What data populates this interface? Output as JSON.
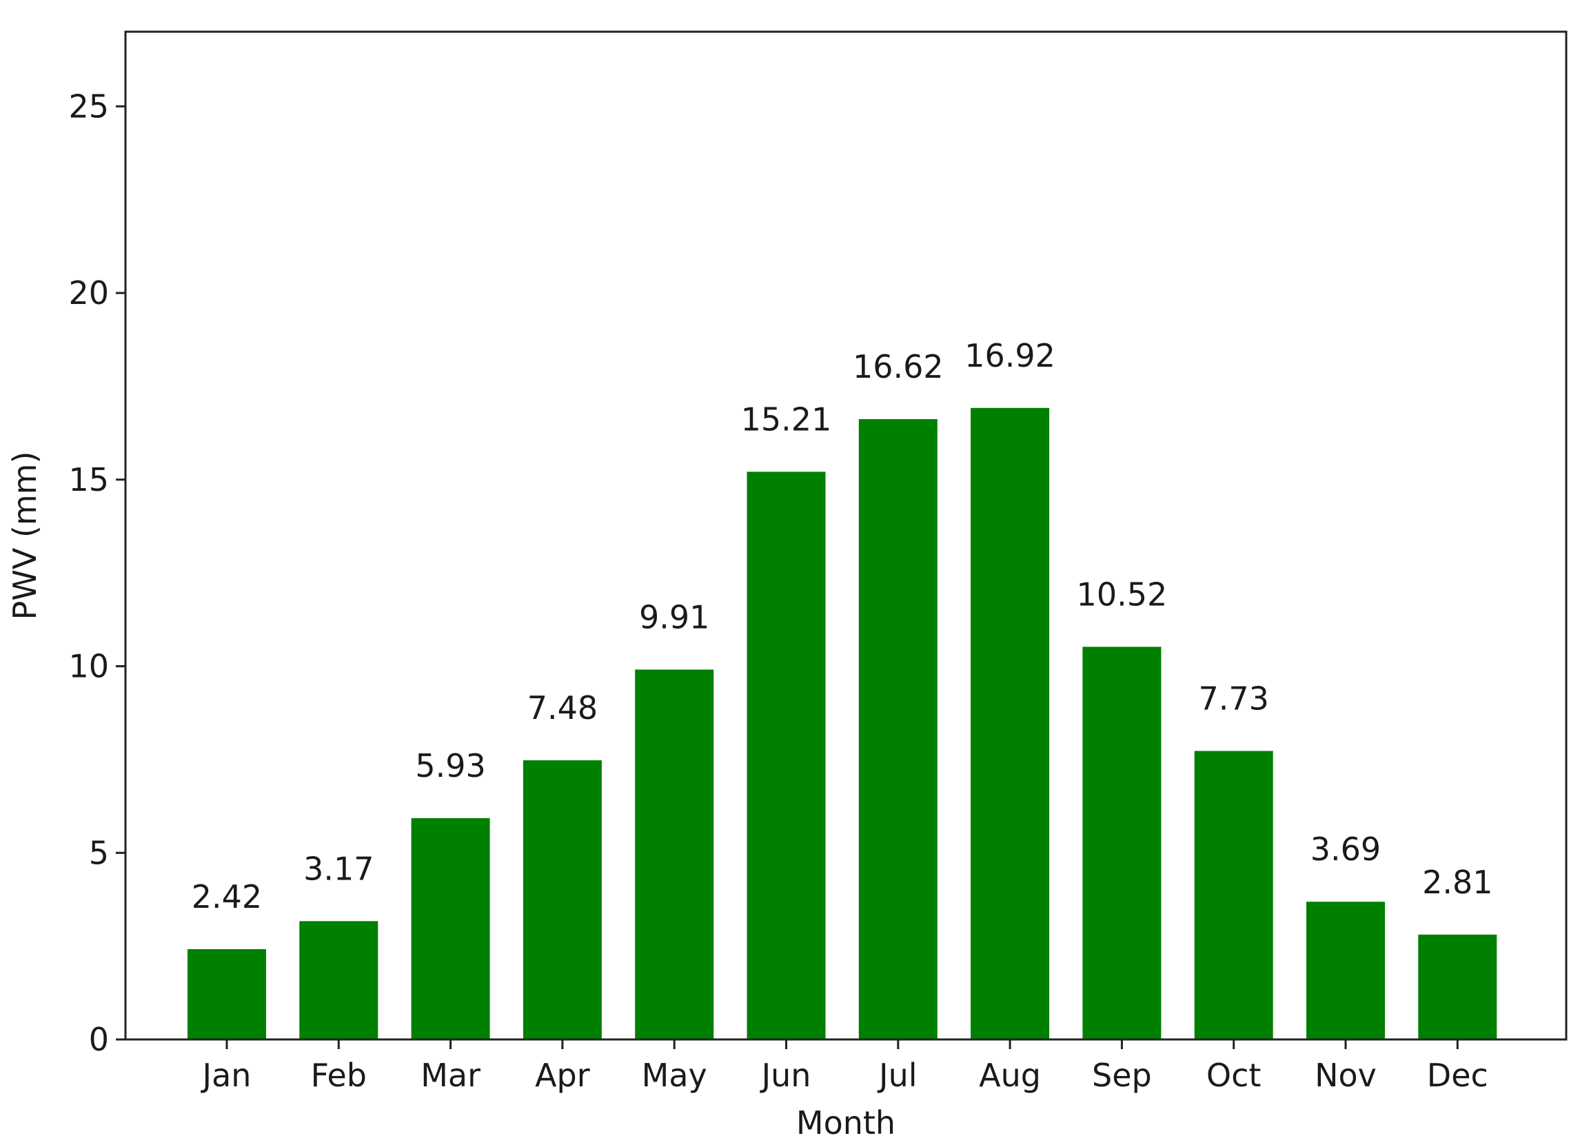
{
  "chart_data": {
    "type": "bar",
    "title": "",
    "xlabel": "Month",
    "ylabel": "PWV (mm)",
    "categories": [
      "Jan",
      "Feb",
      "Mar",
      "Apr",
      "May",
      "Jun",
      "Jul",
      "Aug",
      "Sep",
      "Oct",
      "Nov",
      "Dec"
    ],
    "values": [
      2.42,
      3.17,
      5.93,
      7.48,
      9.91,
      15.21,
      16.62,
      16.92,
      10.52,
      7.73,
      3.69,
      2.81
    ],
    "data_labels": [
      "2.42",
      "3.17",
      "5.93",
      "7.48",
      "9.91",
      "15.21",
      "16.62",
      "16.92",
      "10.52",
      "7.73",
      "3.69",
      "2.81"
    ],
    "ylim": [
      0,
      27
    ],
    "yticks": [
      0,
      5,
      10,
      15,
      20,
      25
    ],
    "ytick_labels": [
      "0",
      "5",
      "10",
      "15",
      "20",
      "25"
    ],
    "grid": false,
    "legend": "none",
    "bar_color": "#008000"
  }
}
